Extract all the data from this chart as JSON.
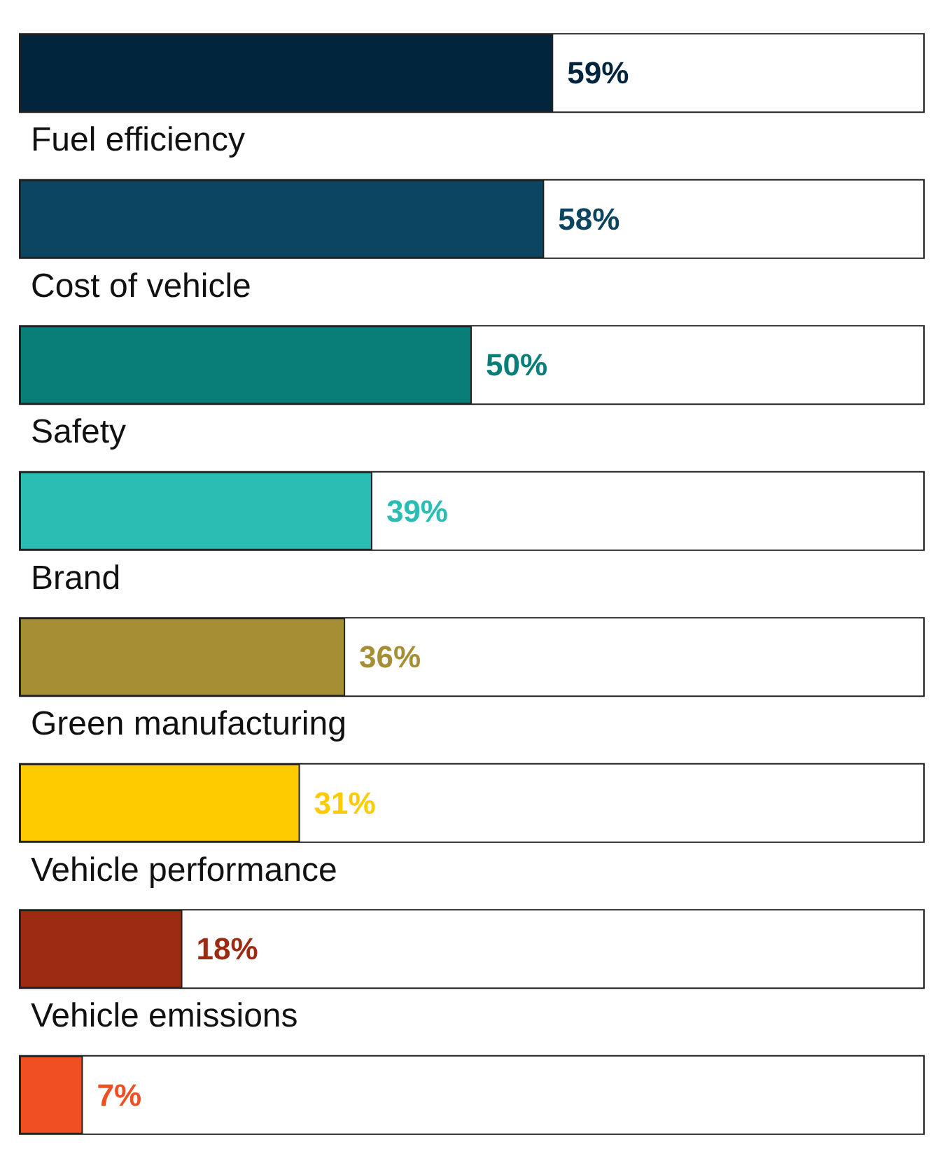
{
  "chart_data": {
    "type": "bar",
    "orientation": "horizontal",
    "categories": [
      "Fuel efficiency",
      "Cost of vehicle",
      "Safety",
      "Brand",
      "Green manufacturing",
      "Vehicle performance",
      "Vehicle emissions",
      null
    ],
    "values": [
      59,
      58,
      50,
      39,
      36,
      31,
      18,
      7
    ],
    "colors": [
      "#00253d",
      "#0b4562",
      "#087e78",
      "#2bbdb4",
      "#a68e34",
      "#fecb00",
      "#9c2b12",
      "#f04e23"
    ],
    "value_labels": [
      "59%",
      "58%",
      "50%",
      "39%",
      "36%",
      "31%",
      "18%",
      "7%"
    ],
    "xlim": [
      0,
      100
    ]
  }
}
